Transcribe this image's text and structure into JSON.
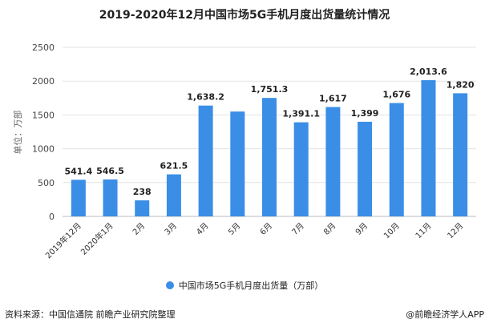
{
  "chart_data": {
    "type": "bar",
    "title": "2019-2020年12月中国市场5G手机月度出货量统计情况",
    "ylabel": "单位：万部",
    "xlabel": "",
    "ylim": [
      0,
      2500
    ],
    "yticks": [
      0,
      500,
      1000,
      1500,
      2000,
      2500
    ],
    "grid": true,
    "legend_position": "bottom",
    "categories": [
      "2019年12月",
      "2020年1月",
      "2月",
      "3月",
      "4月",
      "5月",
      "6月",
      "7月",
      "8月",
      "9月",
      "10月",
      "11月",
      "12月"
    ],
    "series": [
      {
        "name": "中国市场5G手机月度出货量（万部）",
        "color": "#3a8ee6",
        "values": [
          541.4,
          546.5,
          238,
          621.5,
          1638.2,
          1550,
          1751.3,
          1391.1,
          1617,
          1399,
          1676,
          2013.6,
          1820
        ],
        "labels": [
          "541.4",
          "546.5",
          "238",
          "621.5",
          "1,638.2",
          "",
          "1,751.3",
          "1,391.1",
          "1,617",
          "1,399",
          "1,676",
          "2,013.6",
          "1,820"
        ]
      }
    ]
  },
  "footer": {
    "source": "资料来源：中国信通院 前瞻产业研究院整理",
    "brand": "@前瞻经济学人APP"
  }
}
